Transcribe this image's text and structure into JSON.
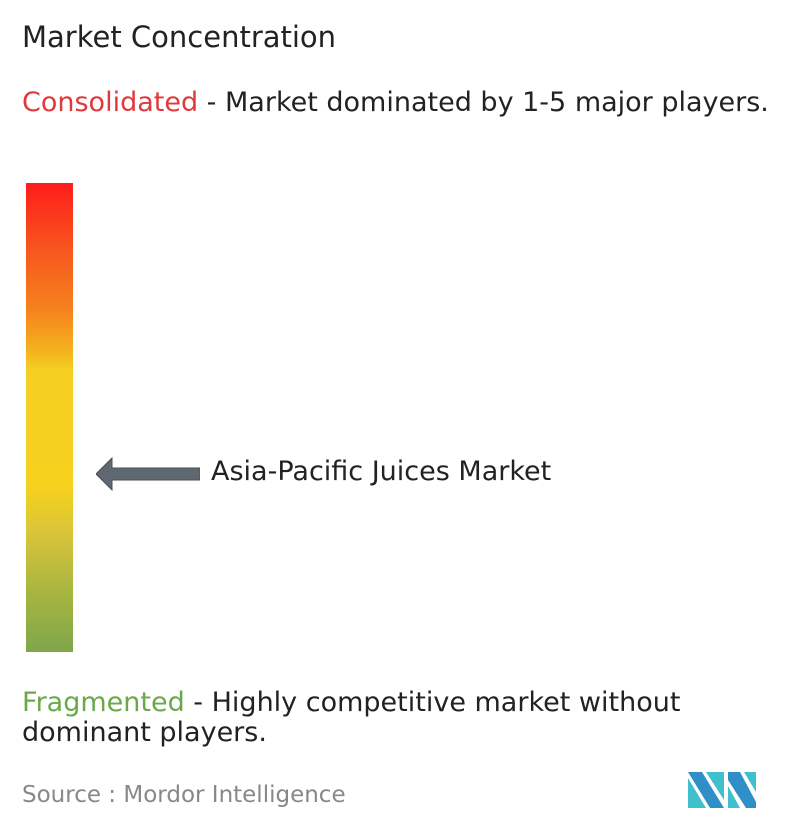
{
  "title": "Market Concentration",
  "consolidated": {
    "label": "Consolidated",
    "description": " - Market dominated by 1-5 major players.",
    "color": "#e0393a"
  },
  "fragmented": {
    "label": "Fragmented",
    "description": " - Highly competitive market without dominant players.",
    "color": "#6aa94a"
  },
  "market": {
    "name": "Asia-Pacific Juices Market",
    "concentration_level": 0.38,
    "arrow_icon": "arrow-left-icon"
  },
  "scale": {
    "top_color": "#ff1d1a",
    "middle_color": "#f6d11e",
    "bottom_color": "#7fa64c"
  },
  "source": {
    "label": "Source :",
    "value": "Mordor Intelligence"
  },
  "logo": {
    "text": "Mordor Intelligence logo"
  }
}
